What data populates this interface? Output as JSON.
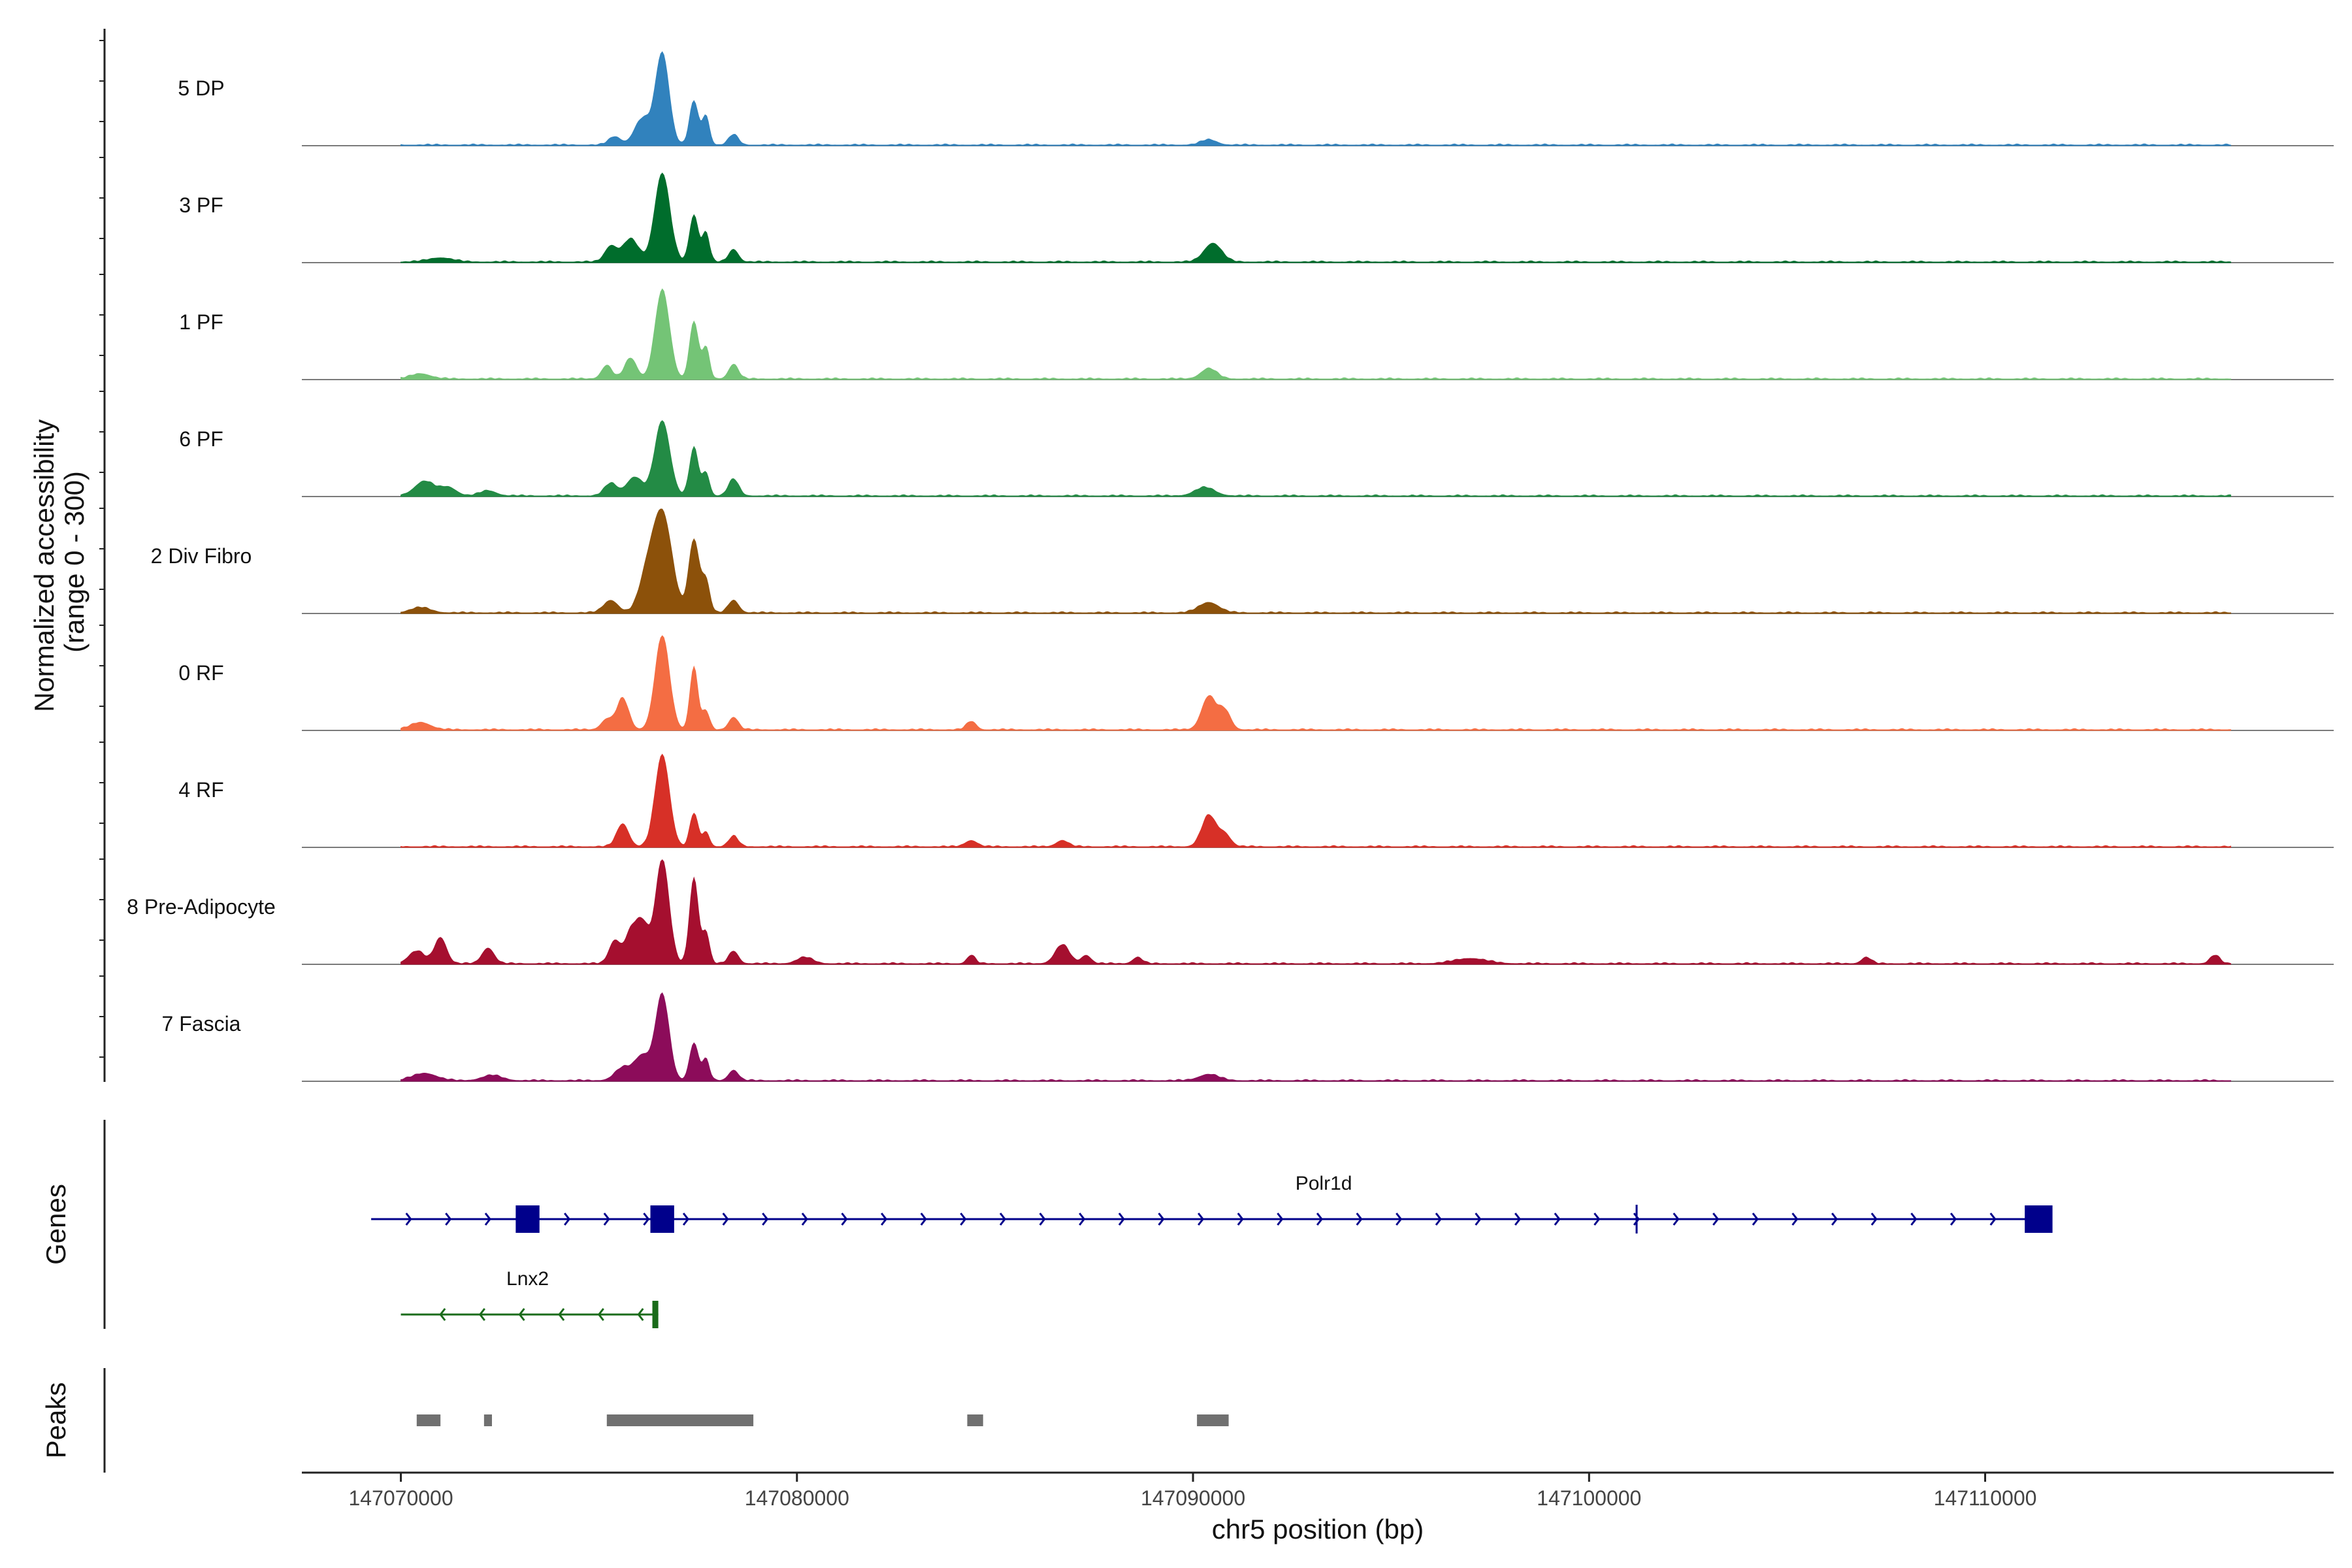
{
  "chart_data": {
    "type": "area",
    "title": "",
    "chromosome": "chr5",
    "xlabel": "chr5 position (bp)",
    "ylabel_line1": "Normalized accessibility",
    "ylabel_line2": "(range 0 - 300)",
    "xlim": [
      147067500,
      147118800
    ],
    "x_ticks": [
      147070000,
      147080000,
      147090000,
      147100000,
      147110000
    ],
    "x_tick_labels": [
      "147070000",
      "147080000",
      "147090000",
      "147100000",
      "147110000"
    ],
    "y_range": [
      0,
      300
    ],
    "series": [
      {
        "name": "5 DP",
        "color": "#3182bd",
        "peaks": [
          [
            147076600,
            0.88,
            170
          ],
          [
            147077400,
            0.42,
            110
          ],
          [
            147077700,
            0.28,
            90
          ],
          [
            147076100,
            0.25,
            200
          ],
          [
            147078400,
            0.1,
            120
          ],
          [
            147075400,
            0.08,
            150
          ],
          [
            147090400,
            0.05,
            200
          ]
        ]
      },
      {
        "name": "3 PF",
        "color": "#006d2c",
        "peaks": [
          [
            147076600,
            0.85,
            190
          ],
          [
            147077400,
            0.45,
            110
          ],
          [
            147077700,
            0.28,
            90
          ],
          [
            147075800,
            0.22,
            200
          ],
          [
            147078400,
            0.12,
            120
          ],
          [
            147075300,
            0.15,
            150
          ],
          [
            147090500,
            0.18,
            220
          ],
          [
            147071000,
            0.04,
            300
          ]
        ]
      },
      {
        "name": "1 PF",
        "color": "#74c476",
        "peaks": [
          [
            147076600,
            0.85,
            180
          ],
          [
            147077400,
            0.55,
            110
          ],
          [
            147077700,
            0.3,
            90
          ],
          [
            147075800,
            0.2,
            150
          ],
          [
            147078400,
            0.14,
            120
          ],
          [
            147075200,
            0.13,
            130
          ],
          [
            147090400,
            0.1,
            200
          ],
          [
            147070500,
            0.05,
            250
          ]
        ]
      },
      {
        "name": "6 PF",
        "color": "#238b45",
        "peaks": [
          [
            147076600,
            0.72,
            190
          ],
          [
            147077400,
            0.46,
            110
          ],
          [
            147077700,
            0.22,
            90
          ],
          [
            147075900,
            0.18,
            200
          ],
          [
            147078400,
            0.16,
            130
          ],
          [
            147075300,
            0.12,
            160
          ],
          [
            147090300,
            0.08,
            250
          ],
          [
            147070600,
            0.14,
            250
          ],
          [
            147071200,
            0.08,
            200
          ],
          [
            147072200,
            0.05,
            200
          ]
        ]
      },
      {
        "name": "2 Div Fibro",
        "color": "#8c510a",
        "peaks": [
          [
            147076600,
            0.95,
            240
          ],
          [
            147077400,
            0.7,
            130
          ],
          [
            147077700,
            0.3,
            100
          ],
          [
            147076200,
            0.3,
            200
          ],
          [
            147078400,
            0.12,
            130
          ],
          [
            147075300,
            0.12,
            180
          ],
          [
            147090400,
            0.1,
            250
          ],
          [
            147070500,
            0.05,
            250
          ]
        ]
      },
      {
        "name": "0 RF",
        "color": "#f46d43",
        "peaks": [
          [
            147076600,
            0.9,
            180
          ],
          [
            147077400,
            0.6,
            100
          ],
          [
            147077700,
            0.18,
            90
          ],
          [
            147075600,
            0.3,
            150
          ],
          [
            147078400,
            0.12,
            120
          ],
          [
            147075200,
            0.1,
            140
          ],
          [
            147090400,
            0.32,
            180
          ],
          [
            147090800,
            0.18,
            150
          ],
          [
            147084400,
            0.08,
            120
          ],
          [
            147070500,
            0.07,
            250
          ]
        ]
      },
      {
        "name": "4 RF",
        "color": "#d73027",
        "peaks": [
          [
            147076600,
            0.88,
            180
          ],
          [
            147077400,
            0.32,
            100
          ],
          [
            147077700,
            0.14,
            90
          ],
          [
            147075600,
            0.22,
            150
          ],
          [
            147078400,
            0.1,
            120
          ],
          [
            147090400,
            0.3,
            180
          ],
          [
            147090800,
            0.12,
            150
          ],
          [
            147086700,
            0.06,
            150
          ],
          [
            147084400,
            0.06,
            150
          ]
        ]
      },
      {
        "name": "8 Pre-Adipocyte",
        "color": "#a50f2f",
        "peaks": [
          [
            147076600,
            1.0,
            170
          ],
          [
            147077400,
            0.82,
            110
          ],
          [
            147077700,
            0.3,
            90
          ],
          [
            147076100,
            0.38,
            160
          ],
          [
            147075800,
            0.28,
            150
          ],
          [
            147075400,
            0.22,
            140
          ],
          [
            147078400,
            0.12,
            120
          ],
          [
            147071000,
            0.25,
            150
          ],
          [
            147070400,
            0.12,
            200
          ],
          [
            147072200,
            0.15,
            150
          ],
          [
            147086700,
            0.18,
            180
          ],
          [
            147084400,
            0.08,
            100
          ],
          [
            147087300,
            0.08,
            120
          ],
          [
            147088600,
            0.06,
            120
          ],
          [
            147080200,
            0.06,
            200
          ],
          [
            147115800,
            0.08,
            120
          ],
          [
            147107000,
            0.06,
            120
          ],
          [
            147097000,
            0.05,
            400
          ]
        ]
      },
      {
        "name": "7 Fascia",
        "color": "#8c0c5a",
        "peaks": [
          [
            147076600,
            0.82,
            170
          ],
          [
            147077400,
            0.36,
            110
          ],
          [
            147077700,
            0.2,
            90
          ],
          [
            147076100,
            0.24,
            200
          ],
          [
            147075600,
            0.12,
            200
          ],
          [
            147078400,
            0.1,
            120
          ],
          [
            147090400,
            0.06,
            250
          ],
          [
            147070600,
            0.07,
            300
          ],
          [
            147072300,
            0.05,
            250
          ]
        ]
      }
    ],
    "genes": [
      {
        "name": "Polr1d",
        "strand": "+",
        "color": "#00008b",
        "start": 147069250,
        "end": 147111200,
        "exons": [
          [
            147072900,
            147073500
          ],
          [
            147076300,
            147076900
          ],
          [
            147111000,
            147111700
          ]
        ],
        "marks": [
          147101200
        ]
      },
      {
        "name": "Lnx2",
        "strand": "-",
        "color": "#1a6b1a",
        "start": 147070000,
        "end": 147076500,
        "exons": [
          [
            147076350,
            147076500
          ]
        ],
        "marks": []
      }
    ],
    "peaks_regions": [
      [
        147070400,
        147071000
      ],
      [
        147072100,
        147072300
      ],
      [
        147075200,
        147078900
      ],
      [
        147084300,
        147084700
      ],
      [
        147090100,
        147090900
      ]
    ],
    "panel_labels": {
      "genes": "Genes",
      "peaks": "Peaks"
    }
  }
}
